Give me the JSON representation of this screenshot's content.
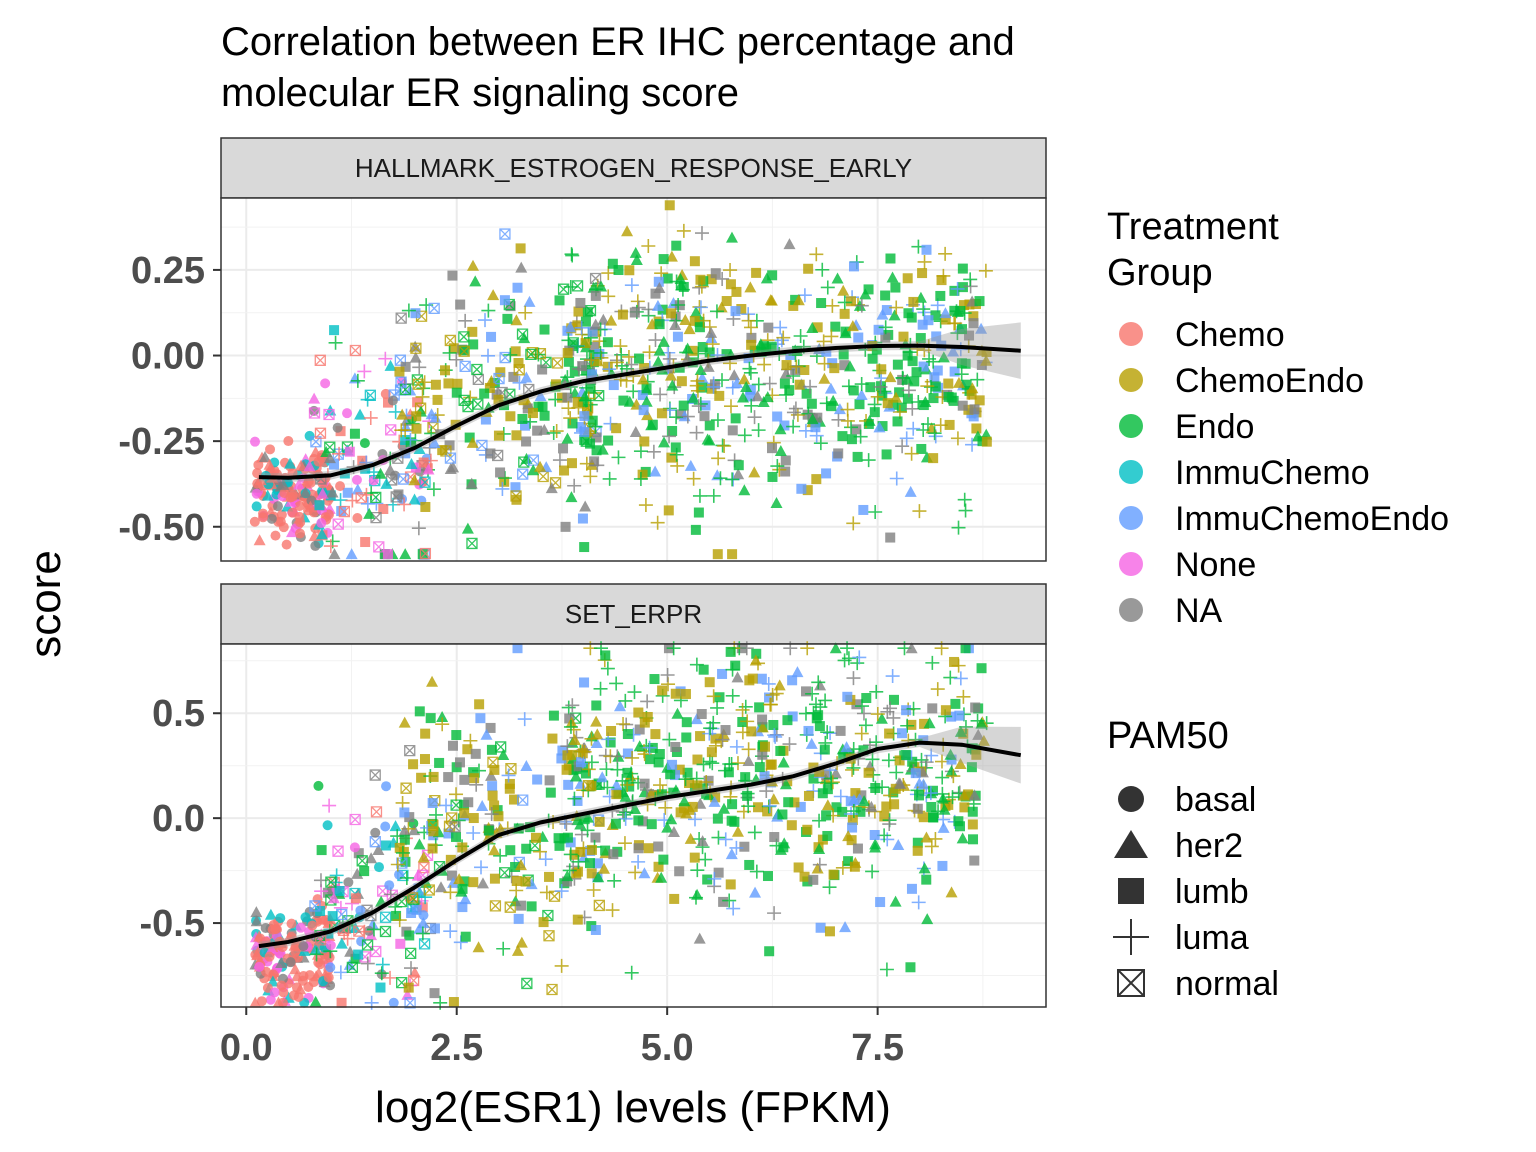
{
  "chart_data": {
    "type": "scatter",
    "title": "Correlation between ER IHC percentage and\nmolecular ER signaling score",
    "xlabel": "log2(ESR1) levels (FPKM)",
    "ylabel": "score",
    "x_ticks": [
      "0.0",
      "2.5",
      "5.0",
      "7.5"
    ],
    "x_tick_values": [
      0,
      2.5,
      5.0,
      7.5
    ],
    "xlim": [
      -0.3,
      9.5
    ],
    "grid": true,
    "legend_position": "right",
    "color_legend": {
      "title": "Treatment\nGroup",
      "entries": [
        {
          "label": "Chemo",
          "color": "#F8766D"
        },
        {
          "label": "ChemoEndo",
          "color": "#B79F00"
        },
        {
          "label": "Endo",
          "color": "#00BA38"
        },
        {
          "label": "ImmuChemo",
          "color": "#00BFC4"
        },
        {
          "label": "ImmuChemoEndo",
          "color": "#619CFF"
        },
        {
          "label": "None",
          "color": "#F564E3"
        },
        {
          "label": "NA",
          "color": "#808080"
        }
      ]
    },
    "shape_legend": {
      "title": "PAM50",
      "entries": [
        {
          "label": "basal",
          "shape": "circle"
        },
        {
          "label": "her2",
          "shape": "triangle"
        },
        {
          "label": "lumb",
          "shape": "square"
        },
        {
          "label": "luma",
          "shape": "plus"
        },
        {
          "label": "normal",
          "shape": "boxed-x"
        }
      ]
    },
    "panels": [
      {
        "strip": "HALLMARK_ESTROGEN_RESPONSE_EARLY",
        "ylim": [
          -0.6,
          0.46
        ],
        "y_ticks": [
          "0.25",
          "0.00",
          "-0.25",
          "-0.50"
        ],
        "y_tick_values": [
          0.25,
          0.0,
          -0.25,
          -0.5
        ],
        "smooth": {
          "x": [
            0.15,
            0.5,
            1.0,
            1.5,
            2.0,
            2.5,
            3.0,
            3.5,
            4.0,
            4.5,
            5.0,
            5.5,
            6.0,
            6.5,
            7.0,
            7.5,
            8.0,
            8.5,
            9.2
          ],
          "y": [
            -0.355,
            -0.357,
            -0.35,
            -0.32,
            -0.27,
            -0.205,
            -0.145,
            -0.105,
            -0.075,
            -0.055,
            -0.035,
            -0.015,
            0.0,
            0.013,
            0.022,
            0.028,
            0.029,
            0.025,
            0.014
          ]
        },
        "clouds": [
          {
            "n": 170,
            "x": [
              0.1,
              1.0
            ],
            "center": -0.4,
            "spread": 0.07,
            "colors": [
              "Chemo",
              "Chemo",
              "Chemo",
              "NA",
              "None",
              "ImmuChemo"
            ],
            "shapes": [
              "basal",
              "basal",
              "her2"
            ]
          },
          {
            "n": 140,
            "x": [
              0.8,
              2.2
            ],
            "center": -0.3,
            "spread": 0.14,
            "colors": [
              "Chemo",
              "None",
              "NA",
              "ImmuChemoEndo",
              "ImmuChemo",
              "Endo"
            ],
            "shapes": [
              "basal",
              "her2",
              "normal",
              "luma",
              "lumb"
            ]
          },
          {
            "n": 240,
            "x": [
              1.8,
              4.2
            ],
            "center": -0.12,
            "spread": 0.17,
            "colors": [
              "Endo",
              "ChemoEndo",
              "ImmuChemoEndo",
              "NA",
              "Endo",
              "ChemoEndo"
            ],
            "shapes": [
              "luma",
              "lumb",
              "her2",
              "normal",
              "lumb"
            ]
          },
          {
            "n": 650,
            "x": [
              3.8,
              8.8
            ],
            "center": -0.05,
            "spread": 0.18,
            "colors": [
              "Endo",
              "Endo",
              "ChemoEndo",
              "ChemoEndo",
              "Endo",
              "ImmuChemoEndo",
              "NA"
            ],
            "shapes": [
              "lumb",
              "luma",
              "lumb",
              "luma",
              "her2"
            ]
          }
        ]
      },
      {
        "strip": "SET_ERPR",
        "ylim": [
          -0.9,
          0.83
        ],
        "y_ticks": [
          "0.5",
          "0.0",
          "-0.5"
        ],
        "y_tick_values": [
          0.5,
          0.0,
          -0.5
        ],
        "smooth": {
          "x": [
            0.15,
            0.5,
            1.0,
            1.5,
            2.0,
            2.5,
            3.0,
            3.5,
            4.0,
            4.5,
            5.0,
            5.5,
            6.0,
            6.5,
            7.0,
            7.5,
            8.0,
            8.5,
            9.2
          ],
          "y": [
            -0.61,
            -0.59,
            -0.54,
            -0.45,
            -0.33,
            -0.2,
            -0.08,
            -0.02,
            0.02,
            0.06,
            0.1,
            0.13,
            0.16,
            0.2,
            0.26,
            0.33,
            0.36,
            0.35,
            0.3
          ]
        },
        "clouds": [
          {
            "n": 170,
            "x": [
              0.1,
              1.0
            ],
            "center": -0.65,
            "spread": 0.11,
            "colors": [
              "Chemo",
              "Chemo",
              "Chemo",
              "NA",
              "None",
              "ImmuChemo"
            ],
            "shapes": [
              "basal",
              "basal",
              "her2"
            ]
          },
          {
            "n": 140,
            "x": [
              0.8,
              2.2
            ],
            "center": -0.4,
            "spread": 0.22,
            "colors": [
              "Chemo",
              "None",
              "NA",
              "ImmuChemoEndo",
              "ImmuChemo",
              "Endo"
            ],
            "shapes": [
              "basal",
              "her2",
              "normal",
              "luma",
              "lumb"
            ]
          },
          {
            "n": 240,
            "x": [
              1.8,
              4.2
            ],
            "center": -0.08,
            "spread": 0.3,
            "colors": [
              "Endo",
              "ChemoEndo",
              "ImmuChemoEndo",
              "NA",
              "Endo",
              "ChemoEndo"
            ],
            "shapes": [
              "luma",
              "lumb",
              "her2",
              "normal",
              "lumb"
            ]
          },
          {
            "n": 650,
            "x": [
              3.8,
              8.8
            ],
            "center": 0.2,
            "spread": 0.3,
            "colors": [
              "Endo",
              "Endo",
              "ChemoEndo",
              "ChemoEndo",
              "Endo",
              "ImmuChemoEndo",
              "NA"
            ],
            "shapes": [
              "lumb",
              "luma",
              "lumb",
              "luma",
              "her2"
            ]
          }
        ]
      }
    ]
  }
}
